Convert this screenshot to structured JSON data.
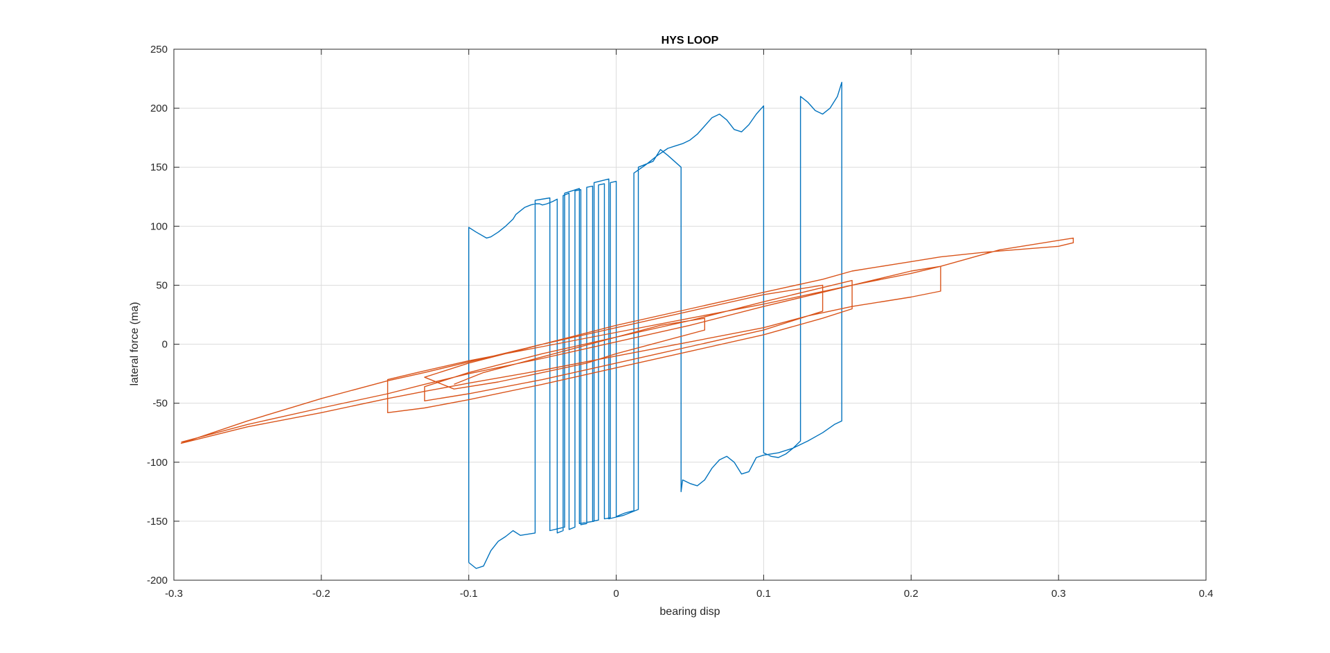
{
  "chart_data": {
    "type": "line",
    "title": "HYS LOOP",
    "xlabel": "bearing disp",
    "ylabel": "lateral force (ma)",
    "xlim": [
      -0.3,
      0.4
    ],
    "ylim": [
      -200,
      250
    ],
    "xticks": [
      -0.3,
      -0.2,
      -0.1,
      0,
      0.1,
      0.2,
      0.3,
      0.4
    ],
    "xtick_labels": [
      "-0.3",
      "-0.2",
      "-0.1",
      "0",
      "0.1",
      "0.2",
      "0.3",
      "0.4"
    ],
    "yticks": [
      -200,
      -150,
      -100,
      -50,
      0,
      50,
      100,
      150,
      200,
      250
    ],
    "ytick_labels": [
      "-200",
      "-150",
      "-100",
      "-50",
      "0",
      "50",
      "100",
      "150",
      "200",
      "250"
    ],
    "grid": true,
    "box": true,
    "series": [
      {
        "color": "#0072BD",
        "x": [
          -0.1,
          -0.1,
          -0.095,
          -0.088,
          -0.085,
          -0.08,
          -0.075,
          -0.07,
          -0.068,
          -0.065,
          -0.062,
          -0.058,
          -0.055,
          -0.052,
          -0.05,
          -0.047,
          -0.045,
          -0.043,
          -0.04,
          -0.04,
          -0.036,
          -0.036,
          -0.032,
          -0.032,
          -0.028,
          -0.028,
          -0.024,
          -0.024,
          -0.02,
          -0.02,
          -0.016,
          -0.016,
          -0.012,
          -0.012,
          -0.008,
          -0.008,
          -0.004,
          -0.004,
          0.0,
          0.0,
          0.006,
          0.012,
          0.012,
          0.02,
          0.028,
          0.035,
          0.04,
          0.045,
          0.05,
          0.055,
          0.06,
          0.065,
          0.07,
          0.075,
          0.08,
          0.085,
          0.09,
          0.095,
          0.1,
          0.1,
          0.105,
          0.11,
          0.115,
          0.12,
          0.125,
          0.125,
          0.13,
          0.135,
          0.14,
          0.145,
          0.15,
          0.153,
          0.153,
          0.148,
          0.14,
          0.13,
          0.12,
          0.11,
          0.1,
          0.095,
          0.09,
          0.085,
          0.08,
          0.075,
          0.07,
          0.065,
          0.06,
          0.055,
          0.05,
          0.045,
          0.044,
          0.044,
          0.035,
          0.03,
          0.025,
          0.015,
          0.015,
          0.005,
          -0.005,
          -0.005,
          -0.015,
          -0.015,
          -0.025,
          -0.025,
          -0.035,
          -0.035,
          -0.045,
          -0.045,
          -0.055,
          -0.055,
          -0.065,
          -0.07,
          -0.075,
          -0.08,
          -0.085,
          -0.09,
          -0.095,
          -0.1
        ],
        "y": [
          -185,
          99,
          95,
          90,
          91,
          95,
          100,
          106,
          110,
          113,
          116,
          118,
          119,
          119,
          118,
          119,
          120,
          121,
          123,
          -160,
          -158,
          126,
          128,
          -157,
          -155,
          130,
          131,
          -153,
          -152,
          133,
          134,
          -150,
          -149,
          135,
          136,
          -148,
          -147,
          137,
          138,
          -146,
          -143,
          -141,
          145,
          152,
          160,
          166,
          168,
          170,
          173,
          178,
          185,
          192,
          195,
          190,
          182,
          180,
          186,
          195,
          202,
          -92,
          -95,
          -96,
          -93,
          -88,
          -82,
          210,
          205,
          198,
          195,
          200,
          210,
          222,
          -65,
          -68,
          -75,
          -82,
          -88,
          -92,
          -94,
          -96,
          -108,
          -110,
          -100,
          -95,
          -98,
          -105,
          -115,
          -120,
          -118,
          -115,
          -125,
          150,
          160,
          165,
          155,
          150,
          -140,
          -145,
          -148,
          140,
          137,
          -150,
          -152,
          132,
          128,
          -155,
          -158,
          124,
          122,
          -160,
          -162,
          -158,
          -163,
          -167,
          -175,
          -188,
          -190,
          -185
        ]
      },
      {
        "color": "#D95319",
        "x": [
          -0.295,
          -0.25,
          -0.2,
          -0.155,
          -0.13,
          -0.1,
          -0.05,
          0.0,
          0.05,
          0.1,
          0.14,
          0.16,
          0.2,
          0.22,
          0.26,
          0.31,
          0.31,
          0.3,
          0.25,
          0.22,
          0.2,
          0.16,
          0.14,
          0.1,
          0.05,
          0.0,
          -0.05,
          -0.1,
          -0.13,
          -0.155,
          -0.2,
          -0.25,
          -0.295,
          -0.295,
          -0.25,
          -0.2,
          -0.155,
          -0.13,
          -0.1,
          -0.05,
          0.0,
          0.05,
          0.1,
          0.13,
          0.16,
          0.2,
          0.22,
          0.22,
          0.2,
          0.16,
          0.13,
          0.1,
          0.05,
          0.0,
          -0.05,
          -0.1,
          -0.135,
          -0.155,
          -0.155,
          -0.13,
          -0.1,
          -0.05,
          0.0,
          0.05,
          0.1,
          0.14,
          0.16,
          0.16,
          0.14,
          0.1,
          0.05,
          0.0,
          -0.05,
          -0.1,
          -0.13,
          -0.13,
          -0.1,
          -0.05,
          0.0,
          0.05,
          0.1,
          0.14,
          0.14,
          0.1,
          0.05,
          0.0,
          -0.05,
          -0.1,
          -0.13,
          -0.11,
          -0.08,
          -0.05,
          -0.02,
          0.0,
          0.03,
          0.06,
          0.06,
          0.03,
          0.0,
          -0.03,
          -0.06,
          -0.09,
          -0.11
        ],
        "y": [
          -83,
          -68,
          -54,
          -42,
          -34,
          -25,
          -12,
          2,
          16,
          32,
          44,
          50,
          62,
          66,
          80,
          90,
          86,
          83,
          78,
          74,
          70,
          62,
          55,
          44,
          30,
          16,
          0,
          -15,
          -24,
          -31,
          -46,
          -65,
          -84,
          -84,
          -70,
          -58,
          -46,
          -40,
          -33,
          -22,
          -10,
          2,
          14,
          24,
          32,
          40,
          45,
          66,
          60,
          50,
          42,
          34,
          22,
          10,
          -2,
          -14,
          -24,
          -30,
          -58,
          -54,
          -47,
          -34,
          -20,
          -6,
          8,
          22,
          30,
          54,
          48,
          36,
          20,
          6,
          -8,
          -24,
          -36,
          -48,
          -42,
          -30,
          -16,
          -2,
          12,
          28,
          50,
          42,
          28,
          14,
          0,
          -16,
          -28,
          -38,
          -32,
          -24,
          -16,
          -8,
          2,
          12,
          22,
          16,
          6,
          -4,
          -14,
          -24,
          -34
        ]
      }
    ]
  }
}
